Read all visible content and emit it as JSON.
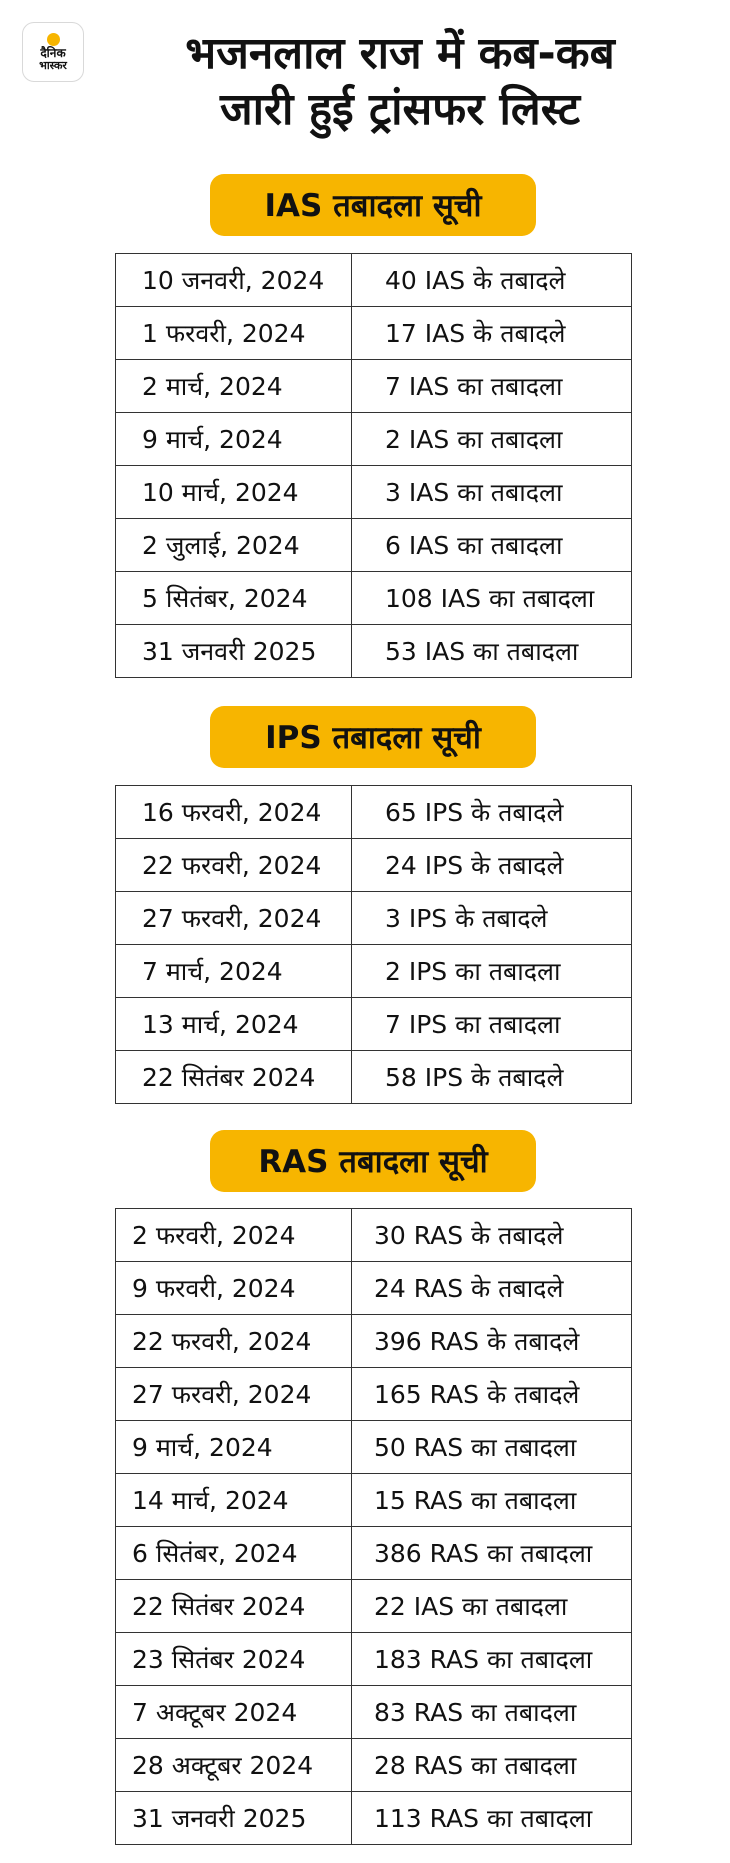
{
  "logo": {
    "line1": "दैनिक",
    "line2": "भास्कर",
    "dot_color": "#f7b500"
  },
  "title": {
    "line1": "भजनलाल राज में कब-कब",
    "line2": "जारी हुई ट्रांसफर लिस्ट"
  },
  "accent_color": "#f7b500",
  "sections": [
    {
      "heading": "IAS तबादला सूची",
      "rows": [
        [
          "10 जनवरी, 2024",
          "40 IAS के तबादले"
        ],
        [
          "1 फरवरी, 2024",
          "17 IAS के तबादले"
        ],
        [
          "2 मार्च, 2024",
          "7 IAS का तबादला"
        ],
        [
          "9 मार्च, 2024",
          "2 IAS का तबादला"
        ],
        [
          "10 मार्च, 2024",
          "3 IAS का तबादला"
        ],
        [
          "2 जुलाई, 2024",
          "6 IAS का तबादला"
        ],
        [
          "5 सितंबर, 2024",
          "108 IAS का तबादला"
        ],
        [
          "31 जनवरी 2025",
          "53 IAS का तबादला"
        ]
      ]
    },
    {
      "heading": "IPS तबादला सूची",
      "rows": [
        [
          "16 फरवरी, 2024",
          "65 IPS के तबादले"
        ],
        [
          "22 फरवरी, 2024",
          "24 IPS के तबादले"
        ],
        [
          "27 फरवरी, 2024",
          "3 IPS के तबादले"
        ],
        [
          "7 मार्च, 2024",
          "2 IPS का तबादला"
        ],
        [
          "13 मार्च, 2024",
          "7 IPS का तबादला"
        ],
        [
          "22 सितंबर 2024",
          "58 IPS के तबादले"
        ]
      ]
    },
    {
      "heading": "RAS तबादला सूची",
      "rows": [
        [
          "2 फरवरी, 2024",
          "30 RAS के तबादले"
        ],
        [
          "9 फरवरी, 2024",
          "24 RAS के तबादले"
        ],
        [
          "22 फरवरी, 2024",
          "396 RAS के तबादले"
        ],
        [
          "27 फरवरी, 2024",
          "165 RAS के तबादले"
        ],
        [
          "9 मार्च, 2024",
          "50 RAS का तबादला"
        ],
        [
          "14 मार्च, 2024",
          "15 RAS का तबादला"
        ],
        [
          "6 सितंबर, 2024",
          "386 RAS का तबादला"
        ],
        [
          "22 सितंबर 2024",
          "22 IAS का तबादला"
        ],
        [
          "23 सितंबर 2024",
          "183 RAS का तबादला"
        ],
        [
          "7 अक्टूबर 2024",
          "83 RAS का तबादला"
        ],
        [
          "28 अक्टूबर 2024",
          "28 RAS का तबादला"
        ],
        [
          "31 जनवरी 2025",
          "113 RAS का तबादला"
        ]
      ]
    }
  ]
}
